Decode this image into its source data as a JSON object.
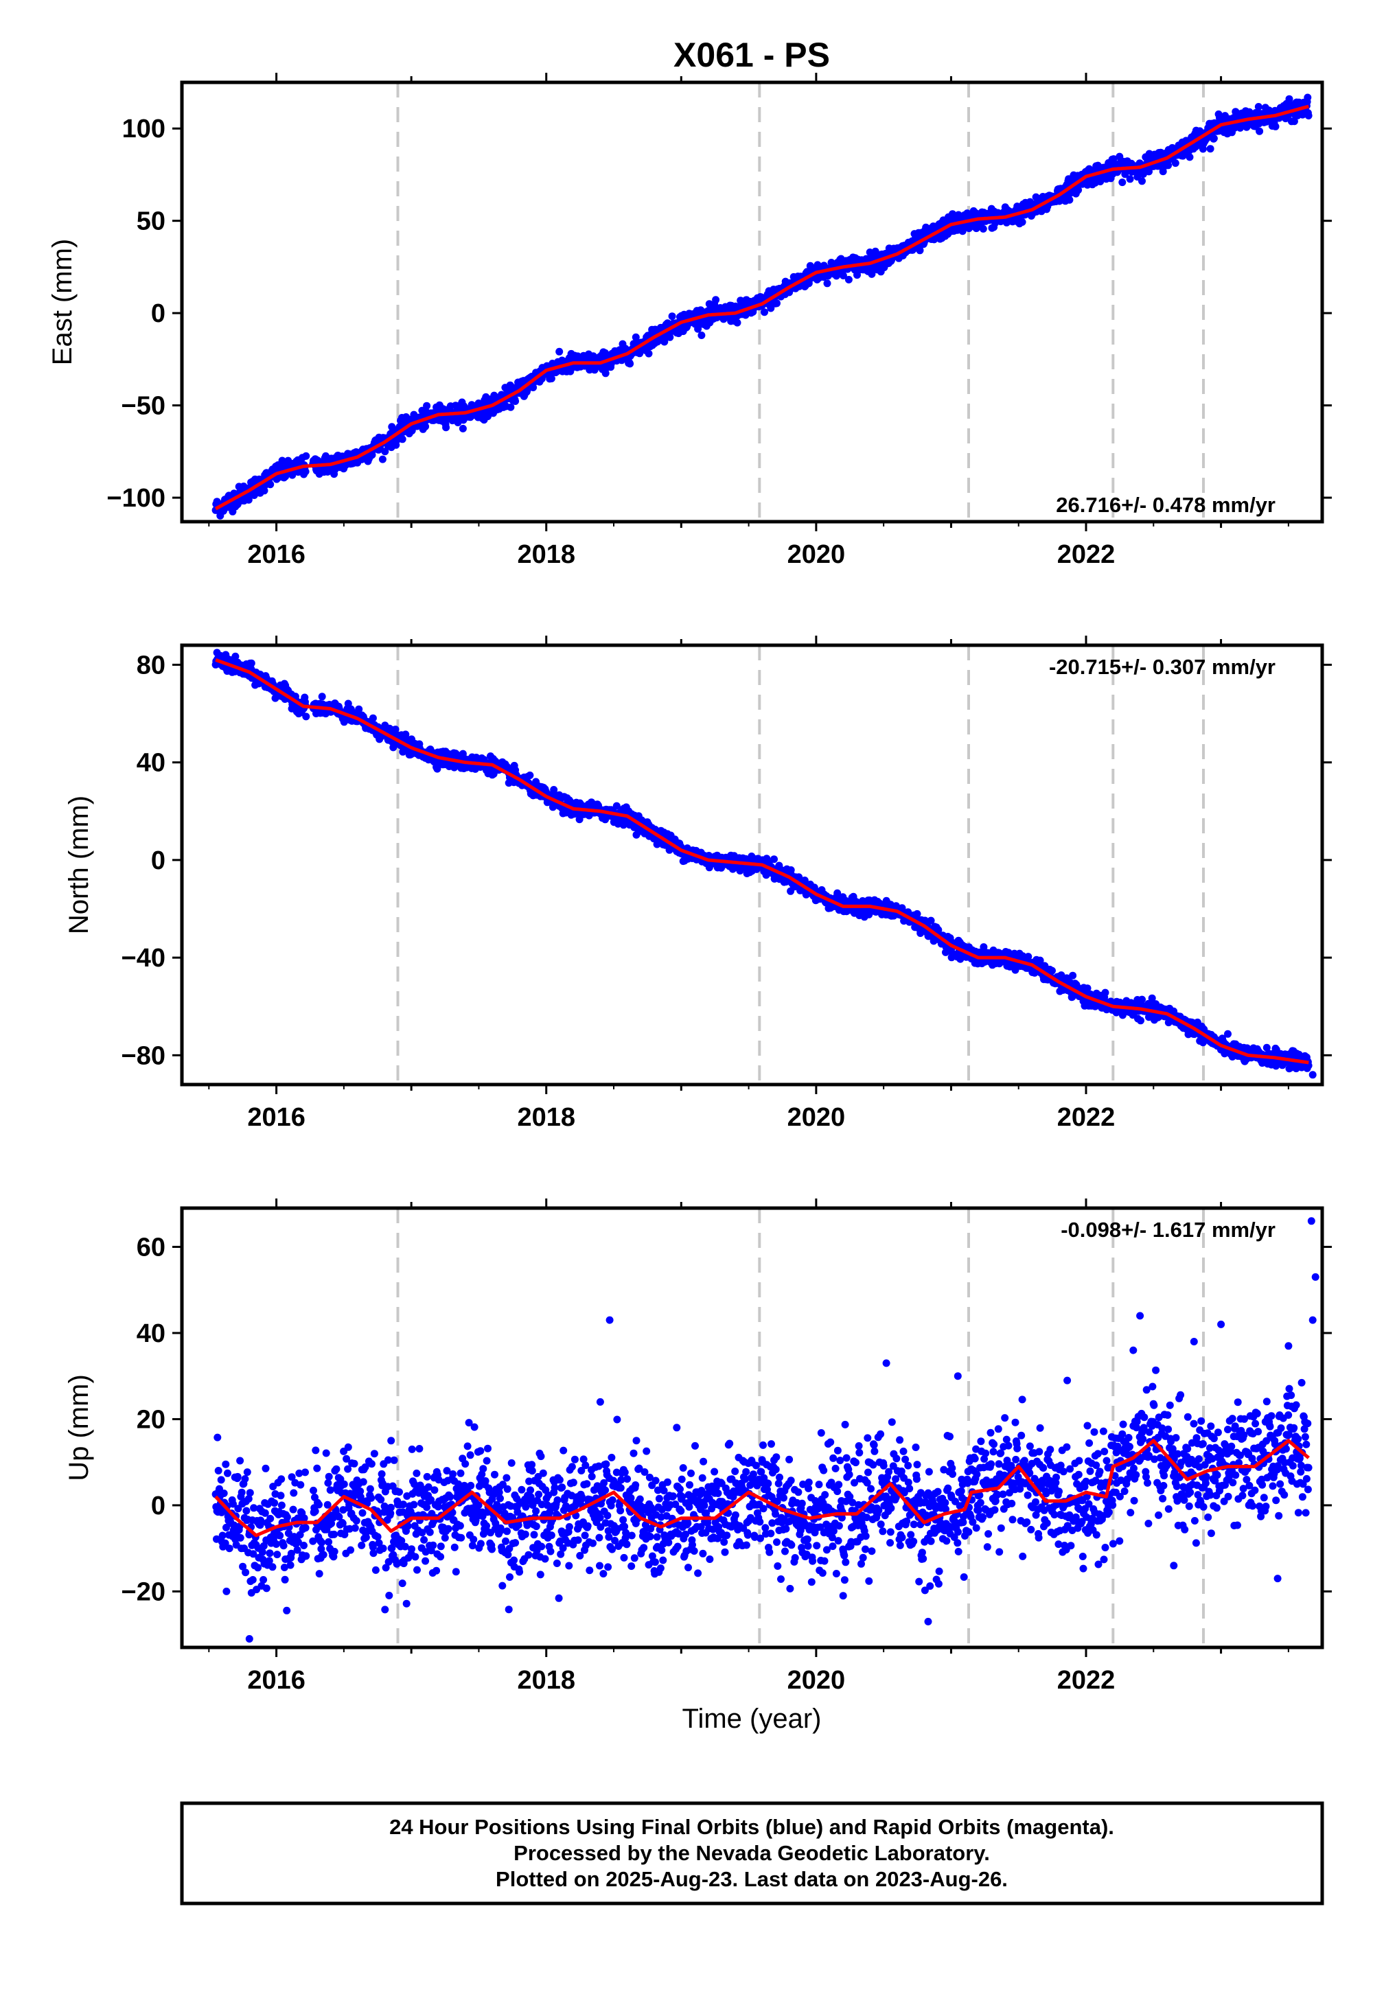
{
  "chart_data": {
    "type": "scatter",
    "title": "X061 - PS",
    "xlabel": "Time (year)",
    "xlim": [
      2015.3,
      2023.75
    ],
    "x_ticks": [
      "2016",
      "2018",
      "2020",
      "2022"
    ],
    "x_tick_values": [
      2016,
      2018,
      2020,
      2022
    ],
    "vertical_dashed_lines": [
      2016.9,
      2019.58,
      2021.13,
      2022.2,
      2022.87
    ],
    "colors": {
      "points": "#0000ff",
      "model": "#ff0000",
      "dashed": "#c8c8c8"
    },
    "grid": false,
    "panels": [
      {
        "ylabel": "East (mm)",
        "ylim": [
          -113,
          125
        ],
        "y_ticks": [
          "100",
          "50",
          "0",
          "−50",
          "−100"
        ],
        "y_tick_values": [
          100,
          50,
          0,
          -50,
          -100
        ],
        "rate_label": "26.716+/- 0.478 mm/yr",
        "rate_position": "bottom-right",
        "scatter_sd": 2.5,
        "model": {
          "x": [
            2015.55,
            2015.8,
            2016.0,
            2016.2,
            2016.4,
            2016.6,
            2016.8,
            2017.0,
            2017.2,
            2017.4,
            2017.6,
            2017.8,
            2018.0,
            2018.2,
            2018.4,
            2018.6,
            2018.8,
            2019.0,
            2019.2,
            2019.4,
            2019.6,
            2019.8,
            2020.0,
            2020.2,
            2020.4,
            2020.6,
            2020.8,
            2021.0,
            2021.2,
            2021.4,
            2021.6,
            2021.8,
            2022.0,
            2022.2,
            2022.4,
            2022.6,
            2022.8,
            2023.0,
            2023.2,
            2023.4,
            2023.65
          ],
          "y": [
            -106,
            -96,
            -87,
            -83,
            -82,
            -78,
            -70,
            -60,
            -55,
            -54,
            -50,
            -42,
            -31,
            -27,
            -27,
            -22,
            -13,
            -5,
            -1,
            0,
            5,
            14,
            22,
            25,
            27,
            32,
            40,
            48,
            51,
            52,
            56,
            64,
            74,
            78,
            79,
            84,
            93,
            102,
            105,
            107,
            112
          ]
        },
        "outliers": []
      },
      {
        "ylabel": "North (mm)",
        "ylim": [
          -92,
          88
        ],
        "y_ticks": [
          "80",
          "40",
          "0",
          "−40",
          "−80"
        ],
        "y_tick_values": [
          80,
          40,
          0,
          -40,
          -80
        ],
        "rate_label": "-20.715+/- 0.307 mm/yr",
        "rate_position": "top-right",
        "scatter_sd": 1.6,
        "model": {
          "x": [
            2015.55,
            2015.8,
            2016.0,
            2016.2,
            2016.4,
            2016.6,
            2016.8,
            2017.0,
            2017.2,
            2017.4,
            2017.6,
            2017.8,
            2018.0,
            2018.2,
            2018.4,
            2018.6,
            2018.8,
            2019.0,
            2019.2,
            2019.4,
            2019.6,
            2019.8,
            2020.0,
            2020.2,
            2020.4,
            2020.6,
            2020.8,
            2021.0,
            2021.2,
            2021.4,
            2021.6,
            2021.8,
            2022.0,
            2022.2,
            2022.4,
            2022.6,
            2022.8,
            2023.0,
            2023.2,
            2023.4,
            2023.65
          ],
          "y": [
            82,
            77,
            70,
            63,
            62,
            58,
            52,
            46,
            42,
            40,
            39,
            33,
            26,
            21,
            20,
            18,
            11,
            4,
            0,
            -1,
            -2,
            -7,
            -14,
            -19,
            -19,
            -21,
            -27,
            -35,
            -40,
            -40,
            -43,
            -50,
            -56,
            -60,
            -61,
            -63,
            -69,
            -76,
            -80,
            -81,
            -83
          ]
        },
        "outliers": [
          [
            2018.85,
            12
          ],
          [
            2023.68,
            -88
          ]
        ]
      },
      {
        "ylabel": "Up (mm)",
        "ylim": [
          -33,
          69
        ],
        "y_ticks": [
          "60",
          "40",
          "20",
          "0",
          "−20"
        ],
        "y_tick_values": [
          60,
          40,
          20,
          0,
          -20
        ],
        "rate_label": "-0.098+/- 1.617 mm/yr",
        "rate_position": "top-right",
        "scatter_sd": 6.5,
        "model": {
          "x": [
            2015.55,
            2015.7,
            2015.85,
            2016.0,
            2016.15,
            2016.3,
            2016.5,
            2016.7,
            2016.85,
            2017.0,
            2017.2,
            2017.45,
            2017.7,
            2017.9,
            2018.1,
            2018.25,
            2018.5,
            2018.7,
            2018.85,
            2019.0,
            2019.25,
            2019.5,
            2019.75,
            2019.95,
            2020.15,
            2020.3,
            2020.55,
            2020.8,
            2020.95,
            2021.1,
            2021.15,
            2021.35,
            2021.5,
            2021.7,
            2021.85,
            2022.0,
            2022.15,
            2022.2,
            2022.35,
            2022.5,
            2022.75,
            2022.9,
            2023.05,
            2023.25,
            2023.5,
            2023.65
          ],
          "y": [
            2,
            -3,
            -7,
            -5,
            -4,
            -4,
            2,
            -1,
            -6,
            -3,
            -3,
            3,
            -4,
            -3,
            -3,
            -1,
            3,
            -3,
            -5,
            -3,
            -3,
            3,
            -1,
            -3,
            -2,
            -2,
            5,
            -4,
            -2,
            -1,
            3,
            4,
            9,
            1,
            1,
            3,
            2,
            9,
            11,
            15,
            6,
            8,
            9,
            9,
            15,
            11
          ]
        },
        "outliers": [
          [
            2015.63,
            -20
          ],
          [
            2015.8,
            -31
          ],
          [
            2016.85,
            15
          ],
          [
            2018.47,
            43
          ],
          [
            2018.4,
            24
          ],
          [
            2020.2,
            -21
          ],
          [
            2020.83,
            -27
          ],
          [
            2020.52,
            33
          ],
          [
            2021.05,
            30
          ],
          [
            2022.4,
            44
          ],
          [
            2022.8,
            38
          ],
          [
            2023.0,
            42
          ],
          [
            2023.5,
            37
          ],
          [
            2023.67,
            66
          ],
          [
            2023.7,
            53
          ],
          [
            2023.68,
            43
          ],
          [
            2022.35,
            36
          ],
          [
            2023.42,
            -17
          ],
          [
            2022.65,
            -14
          ]
        ]
      }
    ]
  },
  "footer": {
    "lines": [
      "24 Hour Positions Using Final Orbits (blue) and Rapid Orbits (magenta).",
      "Processed by the Nevada Geodetic Laboratory.",
      "Plotted on 2025-Aug-23. Last data on 2023-Aug-26."
    ]
  }
}
